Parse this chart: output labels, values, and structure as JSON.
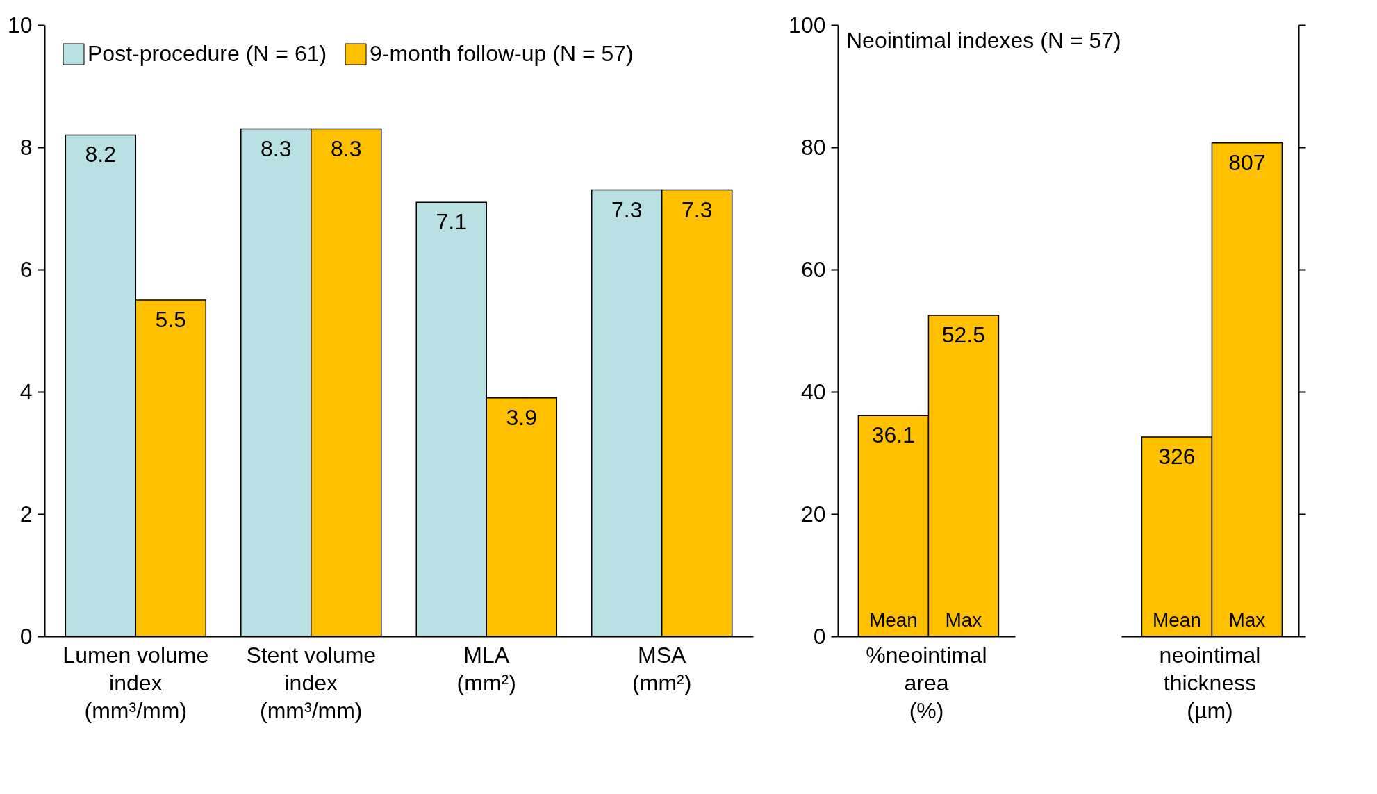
{
  "chart_data": [
    {
      "type": "bar",
      "categories": [
        "Lumen volume\nindex\n(mm³/mm)",
        "Stent volume\nindex\n(mm³/mm)",
        "MLA\n\n(mm²)",
        "MSA\n\n(mm²)"
      ],
      "series": [
        {
          "name": "Post-procedure (N = 61)",
          "color": "#b9e0e3",
          "values": [
            8.2,
            8.3,
            7.1,
            7.3
          ]
        },
        {
          "name": "9-month follow-up (N = 57)",
          "color": "#ffc000",
          "values": [
            5.5,
            8.3,
            3.9,
            7.3
          ]
        }
      ],
      "ylim": [
        0,
        10
      ],
      "yticks": [
        0,
        2,
        4,
        6,
        8,
        10
      ],
      "data_labels": true,
      "legend": "top left"
    },
    {
      "type": "bar",
      "title": "Neointimal indexes (N = 57)",
      "categories": [
        "%neointimal\narea\n(%)"
      ],
      "series": [
        {
          "name": "Mean",
          "color": "#ffc000",
          "values": [
            36.1
          ]
        },
        {
          "name": "Max",
          "color": "#ffc000",
          "values": [
            52.5
          ]
        }
      ],
      "ylim": [
        0,
        100
      ],
      "yticks": [
        0,
        20,
        40,
        60,
        80,
        100
      ],
      "data_labels": true
    },
    {
      "type": "bar",
      "categories": [
        "neointimal\nthickness\n(µm)"
      ],
      "series": [
        {
          "name": "Mean",
          "color": "#ffc000",
          "values": [
            326
          ]
        },
        {
          "name": "Max",
          "color": "#ffc000",
          "values": [
            807
          ]
        }
      ],
      "data_labels": true,
      "tick_labels": "x"
    }
  ]
}
